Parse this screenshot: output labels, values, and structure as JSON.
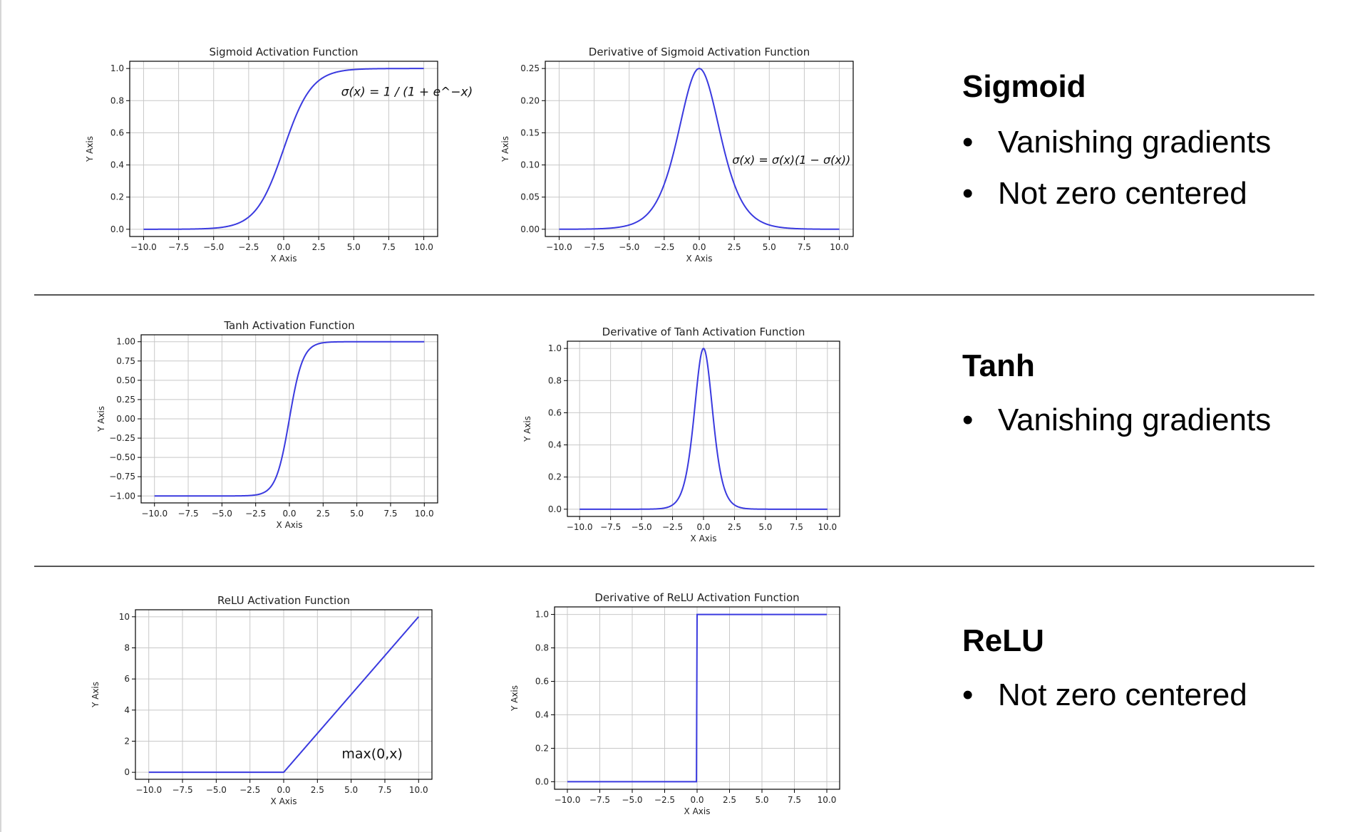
{
  "sections": [
    {
      "heading": "Sigmoid",
      "bullets": [
        "Vanishing gradients",
        "Not zero centered"
      ]
    },
    {
      "heading": "Tanh",
      "bullets": [
        "Vanishing gradients"
      ]
    },
    {
      "heading": "ReLU",
      "bullets": [
        "Not zero centered"
      ]
    }
  ],
  "bullet_glyph": "•",
  "colors": {
    "line": "#3a3adf",
    "grid": "#c8c8c8",
    "axis": "#000000",
    "separator": "#555555"
  },
  "chart_data": [
    {
      "id": "sigmoid",
      "type": "line",
      "func": "sigmoid",
      "title": "Sigmoid Activation Function",
      "xlabel": "X Axis",
      "ylabel": "Y Axis",
      "xlim": [
        -10,
        10
      ],
      "ylim": [
        0,
        1
      ],
      "xticks": [
        "−10.0",
        "−7.5",
        "−5.0",
        "−2.5",
        "0.0",
        "2.5",
        "5.0",
        "7.5",
        "10.0"
      ],
      "yticks": [
        "0.0",
        "0.2",
        "0.4",
        "0.6",
        "0.8",
        "1.0"
      ],
      "annotation": "σ(x) = 1 / (1 + e^−x)"
    },
    {
      "id": "sigmoid-derivative",
      "type": "line",
      "func": "dsigmoid",
      "title": "Derivative of Sigmoid Activation Function",
      "xlabel": "X Axis",
      "ylabel": "Y Axis",
      "xlim": [
        -10,
        10
      ],
      "ylim": [
        0,
        0.25
      ],
      "xticks": [
        "−10.0",
        "−7.5",
        "−5.0",
        "−2.5",
        "0.0",
        "2.5",
        "5.0",
        "7.5",
        "10.0"
      ],
      "yticks": [
        "0.00",
        "0.05",
        "0.10",
        "0.15",
        "0.20",
        "0.25"
      ],
      "annotation": "σ(x) = σ(x)(1 − σ(x))"
    },
    {
      "id": "tanh",
      "type": "line",
      "func": "tanh",
      "title": "Tanh Activation Function",
      "xlabel": "X Axis",
      "ylabel": "Y Axis",
      "xlim": [
        -10,
        10
      ],
      "ylim": [
        -1,
        1
      ],
      "xticks": [
        "−10.0",
        "−7.5",
        "−5.0",
        "−2.5",
        "0.0",
        "2.5",
        "5.0",
        "7.5",
        "10.0"
      ],
      "yticks": [
        "−1.00",
        "−0.75",
        "−0.50",
        "−0.25",
        "0.00",
        "0.25",
        "0.50",
        "0.75",
        "1.00"
      ],
      "annotation": ""
    },
    {
      "id": "tanh-derivative",
      "type": "line",
      "func": "dtanh",
      "title": "Derivative of Tanh Activation Function",
      "xlabel": "X Axis",
      "ylabel": "Y Axis",
      "xlim": [
        -10,
        10
      ],
      "ylim": [
        0,
        1
      ],
      "xticks": [
        "−10.0",
        "−7.5",
        "−5.0",
        "−2.5",
        "0.0",
        "2.5",
        "5.0",
        "7.5",
        "10.0"
      ],
      "yticks": [
        "0.0",
        "0.2",
        "0.4",
        "0.6",
        "0.8",
        "1.0"
      ],
      "annotation": ""
    },
    {
      "id": "relu",
      "type": "line",
      "func": "relu",
      "title": "ReLU Activation Function",
      "xlabel": "X Axis",
      "ylabel": "Y Axis",
      "xlim": [
        -10,
        10
      ],
      "ylim": [
        0,
        10
      ],
      "xticks": [
        "−10.0",
        "−7.5",
        "−5.0",
        "−2.5",
        "0.0",
        "2.5",
        "5.0",
        "7.5",
        "10.0"
      ],
      "yticks": [
        "0",
        "2",
        "4",
        "6",
        "8",
        "10"
      ],
      "annotation": "max(0,x)"
    },
    {
      "id": "relu-derivative",
      "type": "line",
      "func": "drelu",
      "title": "Derivative of ReLU Activation Function",
      "xlabel": "X Axis",
      "ylabel": "Y Axis",
      "xlim": [
        -10,
        10
      ],
      "ylim": [
        0,
        1
      ],
      "xticks": [
        "−10.0",
        "−7.5",
        "−5.0",
        "−2.5",
        "0.0",
        "2.5",
        "5.0",
        "7.5",
        "10.0"
      ],
      "yticks": [
        "0.0",
        "0.2",
        "0.4",
        "0.6",
        "0.8",
        "1.0"
      ],
      "annotation": ""
    }
  ]
}
